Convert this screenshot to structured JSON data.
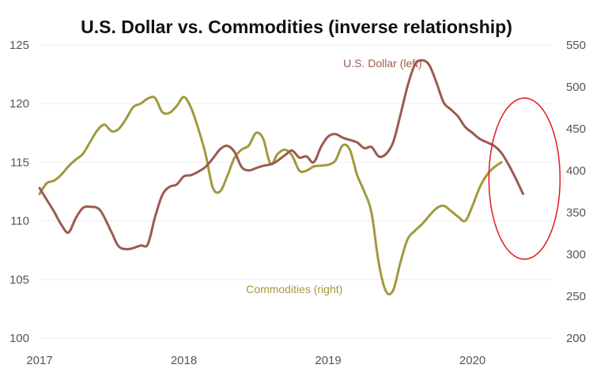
{
  "chart_data": {
    "type": "line",
    "title": "U.S. Dollar vs. Commodities (inverse relationship)",
    "x_ticks": [
      "2017",
      "2018",
      "2019",
      "2020"
    ],
    "x_range": [
      2017.0,
      2020.55
    ],
    "y_left": {
      "min": 100,
      "max": 125,
      "ticks": [
        100,
        105,
        110,
        115,
        120,
        125
      ]
    },
    "y_right": {
      "min": 200,
      "max": 550,
      "ticks": [
        200,
        250,
        300,
        350,
        400,
        450,
        500,
        550
      ]
    },
    "grid": true,
    "colors": {
      "dollar": "#9b5b4e",
      "commodities": "#a09a3c",
      "highlight": "#e3191c",
      "grid": "#eeeeee"
    },
    "annotation": {
      "shape": "ellipse",
      "x_center": 2020.36,
      "y_left_center": 113.6
    },
    "series": [
      {
        "name": "U.S. Dollar (left)",
        "axis": "left",
        "label_at": {
          "x": 2019.65,
          "y": 123.1
        },
        "points": [
          [
            2017.0,
            112.8
          ],
          [
            2017.05,
            111.8
          ],
          [
            2017.1,
            110.8
          ],
          [
            2017.15,
            109.7
          ],
          [
            2017.2,
            109.0
          ],
          [
            2017.25,
            110.2
          ],
          [
            2017.3,
            111.1
          ],
          [
            2017.35,
            111.2
          ],
          [
            2017.42,
            110.9
          ],
          [
            2017.5,
            109.0
          ],
          [
            2017.55,
            107.8
          ],
          [
            2017.62,
            107.6
          ],
          [
            2017.7,
            107.9
          ],
          [
            2017.75,
            108.0
          ],
          [
            2017.8,
            110.3
          ],
          [
            2017.85,
            112.2
          ],
          [
            2017.9,
            112.9
          ],
          [
            2017.95,
            113.1
          ],
          [
            2018.0,
            113.8
          ],
          [
            2018.05,
            113.9
          ],
          [
            2018.1,
            114.2
          ],
          [
            2018.15,
            114.6
          ],
          [
            2018.2,
            115.3
          ],
          [
            2018.25,
            116.1
          ],
          [
            2018.3,
            116.4
          ],
          [
            2018.35,
            115.9
          ],
          [
            2018.4,
            114.6
          ],
          [
            2018.45,
            114.3
          ],
          [
            2018.5,
            114.5
          ],
          [
            2018.55,
            114.7
          ],
          [
            2018.62,
            114.9
          ],
          [
            2018.7,
            115.6
          ],
          [
            2018.75,
            116.0
          ],
          [
            2018.8,
            115.4
          ],
          [
            2018.85,
            115.5
          ],
          [
            2018.9,
            115.0
          ],
          [
            2018.95,
            116.3
          ],
          [
            2019.0,
            117.2
          ],
          [
            2019.05,
            117.4
          ],
          [
            2019.1,
            117.1
          ],
          [
            2019.15,
            116.9
          ],
          [
            2019.2,
            116.7
          ],
          [
            2019.25,
            116.2
          ],
          [
            2019.3,
            116.3
          ],
          [
            2019.35,
            115.5
          ],
          [
            2019.4,
            115.7
          ],
          [
            2019.45,
            116.7
          ],
          [
            2019.5,
            119.0
          ],
          [
            2019.55,
            121.5
          ],
          [
            2019.6,
            123.3
          ],
          [
            2019.65,
            123.7
          ],
          [
            2019.7,
            123.3
          ],
          [
            2019.75,
            121.8
          ],
          [
            2019.8,
            120.1
          ],
          [
            2019.85,
            119.5
          ],
          [
            2019.9,
            118.9
          ],
          [
            2019.95,
            118.0
          ],
          [
            2020.0,
            117.5
          ],
          [
            2020.05,
            117.0
          ],
          [
            2020.1,
            116.7
          ],
          [
            2020.15,
            116.4
          ],
          [
            2020.2,
            115.8
          ],
          [
            2020.25,
            114.8
          ],
          [
            2020.3,
            113.6
          ],
          [
            2020.35,
            112.3
          ]
        ]
      },
      {
        "name": "Commodities (right)",
        "axis": "right",
        "label_at": {
          "x": 2019.1,
          "y": 254
        },
        "points": [
          [
            2017.0,
            372
          ],
          [
            2017.05,
            385
          ],
          [
            2017.1,
            388
          ],
          [
            2017.15,
            395
          ],
          [
            2017.2,
            405
          ],
          [
            2017.25,
            413
          ],
          [
            2017.3,
            420
          ],
          [
            2017.35,
            434
          ],
          [
            2017.4,
            448
          ],
          [
            2017.45,
            455
          ],
          [
            2017.5,
            447
          ],
          [
            2017.55,
            450
          ],
          [
            2017.6,
            462
          ],
          [
            2017.65,
            476
          ],
          [
            2017.7,
            480
          ],
          [
            2017.75,
            486
          ],
          [
            2017.8,
            487
          ],
          [
            2017.85,
            470
          ],
          [
            2017.9,
            469
          ],
          [
            2017.95,
            477
          ],
          [
            2018.0,
            488
          ],
          [
            2018.05,
            475
          ],
          [
            2018.1,
            450
          ],
          [
            2018.15,
            420
          ],
          [
            2018.2,
            380
          ],
          [
            2018.25,
            375
          ],
          [
            2018.3,
            393
          ],
          [
            2018.35,
            415
          ],
          [
            2018.4,
            425
          ],
          [
            2018.45,
            430
          ],
          [
            2018.5,
            445
          ],
          [
            2018.55,
            438
          ],
          [
            2018.6,
            408
          ],
          [
            2018.65,
            420
          ],
          [
            2018.7,
            425
          ],
          [
            2018.75,
            418
          ],
          [
            2018.8,
            400
          ],
          [
            2018.85,
            400
          ],
          [
            2018.9,
            405
          ],
          [
            2018.95,
            406
          ],
          [
            2019.0,
            407
          ],
          [
            2019.05,
            412
          ],
          [
            2019.1,
            430
          ],
          [
            2019.15,
            425
          ],
          [
            2019.2,
            395
          ],
          [
            2019.25,
            375
          ],
          [
            2019.3,
            350
          ],
          [
            2019.35,
            290
          ],
          [
            2019.4,
            256
          ],
          [
            2019.45,
            257
          ],
          [
            2019.5,
            290
          ],
          [
            2019.55,
            318
          ],
          [
            2019.6,
            328
          ],
          [
            2019.65,
            336
          ],
          [
            2019.7,
            346
          ],
          [
            2019.75,
            355
          ],
          [
            2019.8,
            358
          ],
          [
            2019.85,
            352
          ],
          [
            2019.9,
            345
          ],
          [
            2019.95,
            340
          ],
          [
            2020.0,
            358
          ],
          [
            2020.05,
            380
          ],
          [
            2020.1,
            395
          ],
          [
            2020.15,
            404
          ],
          [
            2020.2,
            410
          ]
        ]
      }
    ]
  }
}
